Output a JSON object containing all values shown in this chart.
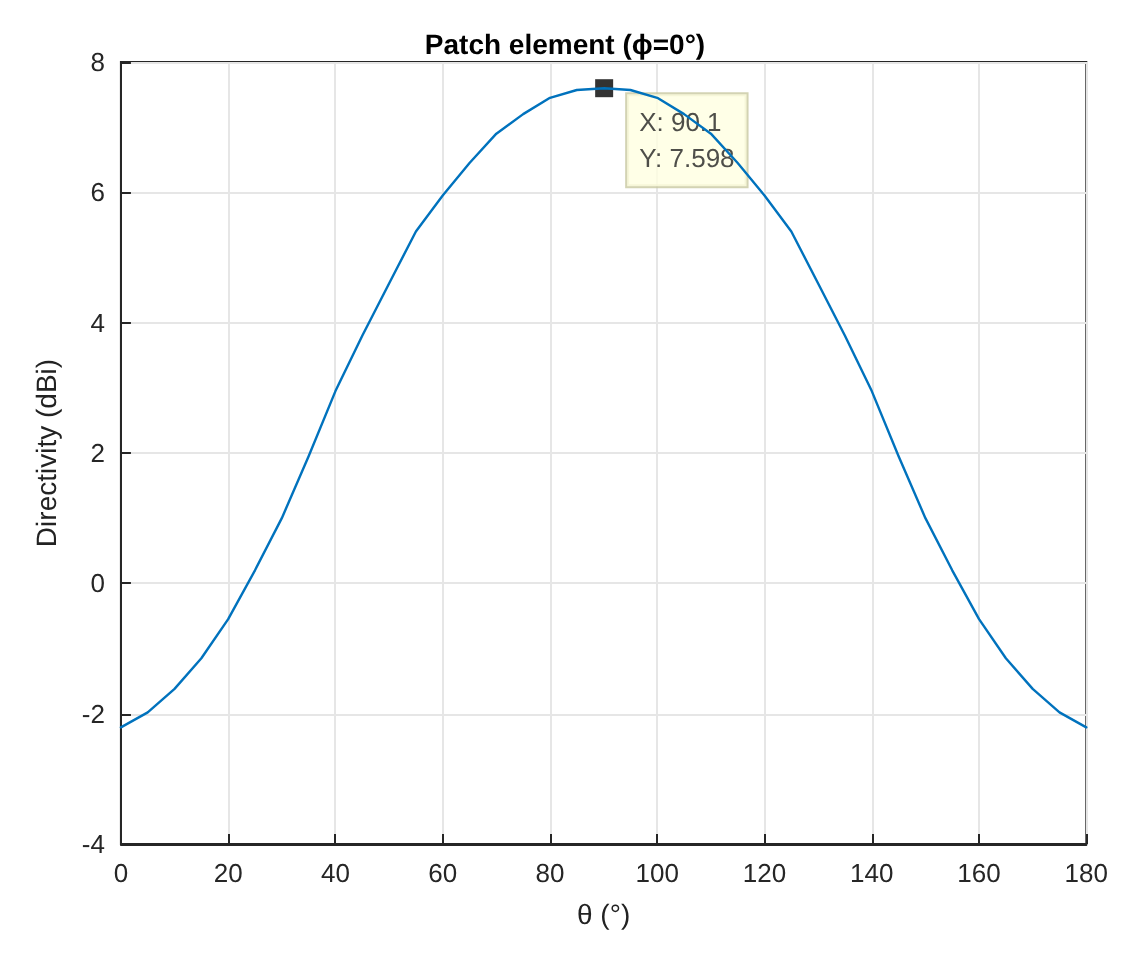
{
  "chart_data": {
    "type": "line",
    "title": "Patch element (ϕ=0°)",
    "xlabel": "θ (°)",
    "ylabel": "Directivity (dBi)",
    "x": [
      0,
      5,
      10,
      15,
      20,
      25,
      30,
      35,
      40,
      45,
      50,
      55,
      60,
      65,
      70,
      75,
      80,
      85,
      90.1,
      95,
      100,
      105,
      110,
      115,
      120,
      125,
      130,
      135,
      140,
      145,
      150,
      155,
      160,
      165,
      170,
      175,
      180
    ],
    "series": [
      {
        "color": "#0072bd",
        "values": [
          -2.21,
          -1.98,
          -1.62,
          -1.15,
          -0.55,
          0.2,
          1.0,
          1.95,
          2.95,
          3.8,
          4.6,
          5.4,
          5.95,
          6.45,
          6.9,
          7.2,
          7.45,
          7.57,
          7.598,
          7.57,
          7.45,
          7.2,
          6.9,
          6.45,
          5.95,
          5.4,
          4.6,
          3.8,
          2.95,
          1.95,
          1.0,
          0.2,
          -0.55,
          -1.15,
          -1.62,
          -1.98,
          -2.21
        ]
      }
    ],
    "xlim": [
      0,
      180
    ],
    "xticks": [
      0,
      20,
      40,
      60,
      80,
      100,
      120,
      140,
      160,
      180
    ],
    "ylim": [
      -4,
      8
    ],
    "yticks": [
      -4,
      -2,
      0,
      2,
      4,
      6,
      8
    ],
    "annotations": [
      {
        "text": "X: 90.1\nY: 7.598",
        "x": 90.1,
        "y": 7.598
      }
    ],
    "grid": true,
    "marker": "none",
    "line_style": "solid"
  }
}
